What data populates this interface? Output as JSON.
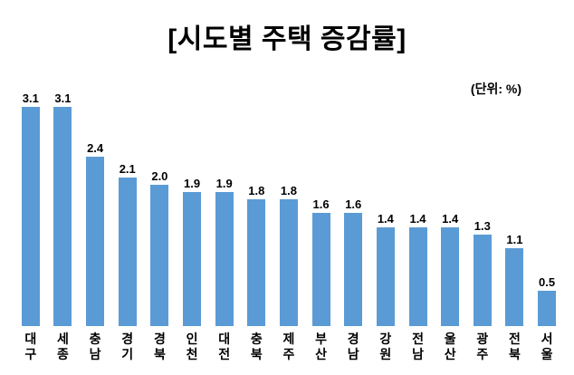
{
  "chart_data": {
    "type": "bar",
    "title": "[시도별 주택 증감률]",
    "unit_label": "(단위: %)",
    "categories": [
      "대구",
      "세종",
      "충남",
      "경기",
      "경북",
      "인천",
      "대전",
      "충북",
      "제주",
      "부산",
      "경남",
      "강원",
      "전남",
      "울산",
      "광주",
      "전북",
      "서울"
    ],
    "values": [
      3.1,
      3.1,
      2.4,
      2.1,
      2.0,
      1.9,
      1.9,
      1.8,
      1.8,
      1.6,
      1.6,
      1.4,
      1.4,
      1.4,
      1.3,
      1.1,
      0.5
    ],
    "value_labels": [
      "3.1",
      "3.1",
      "2.4",
      "2.1",
      "2.0",
      "1.9",
      "1.9",
      "1.8",
      "1.8",
      "1.6",
      "1.6",
      "1.4",
      "1.4",
      "1.4",
      "1.3",
      "1.1",
      "0.5"
    ],
    "xlabel": "",
    "ylabel": "",
    "ylim": [
      0,
      3.3
    ],
    "grid": false,
    "legend": false,
    "bar_color": "#5B9BD5",
    "text_color": "#000000",
    "background_color": "#FFFFFF"
  }
}
